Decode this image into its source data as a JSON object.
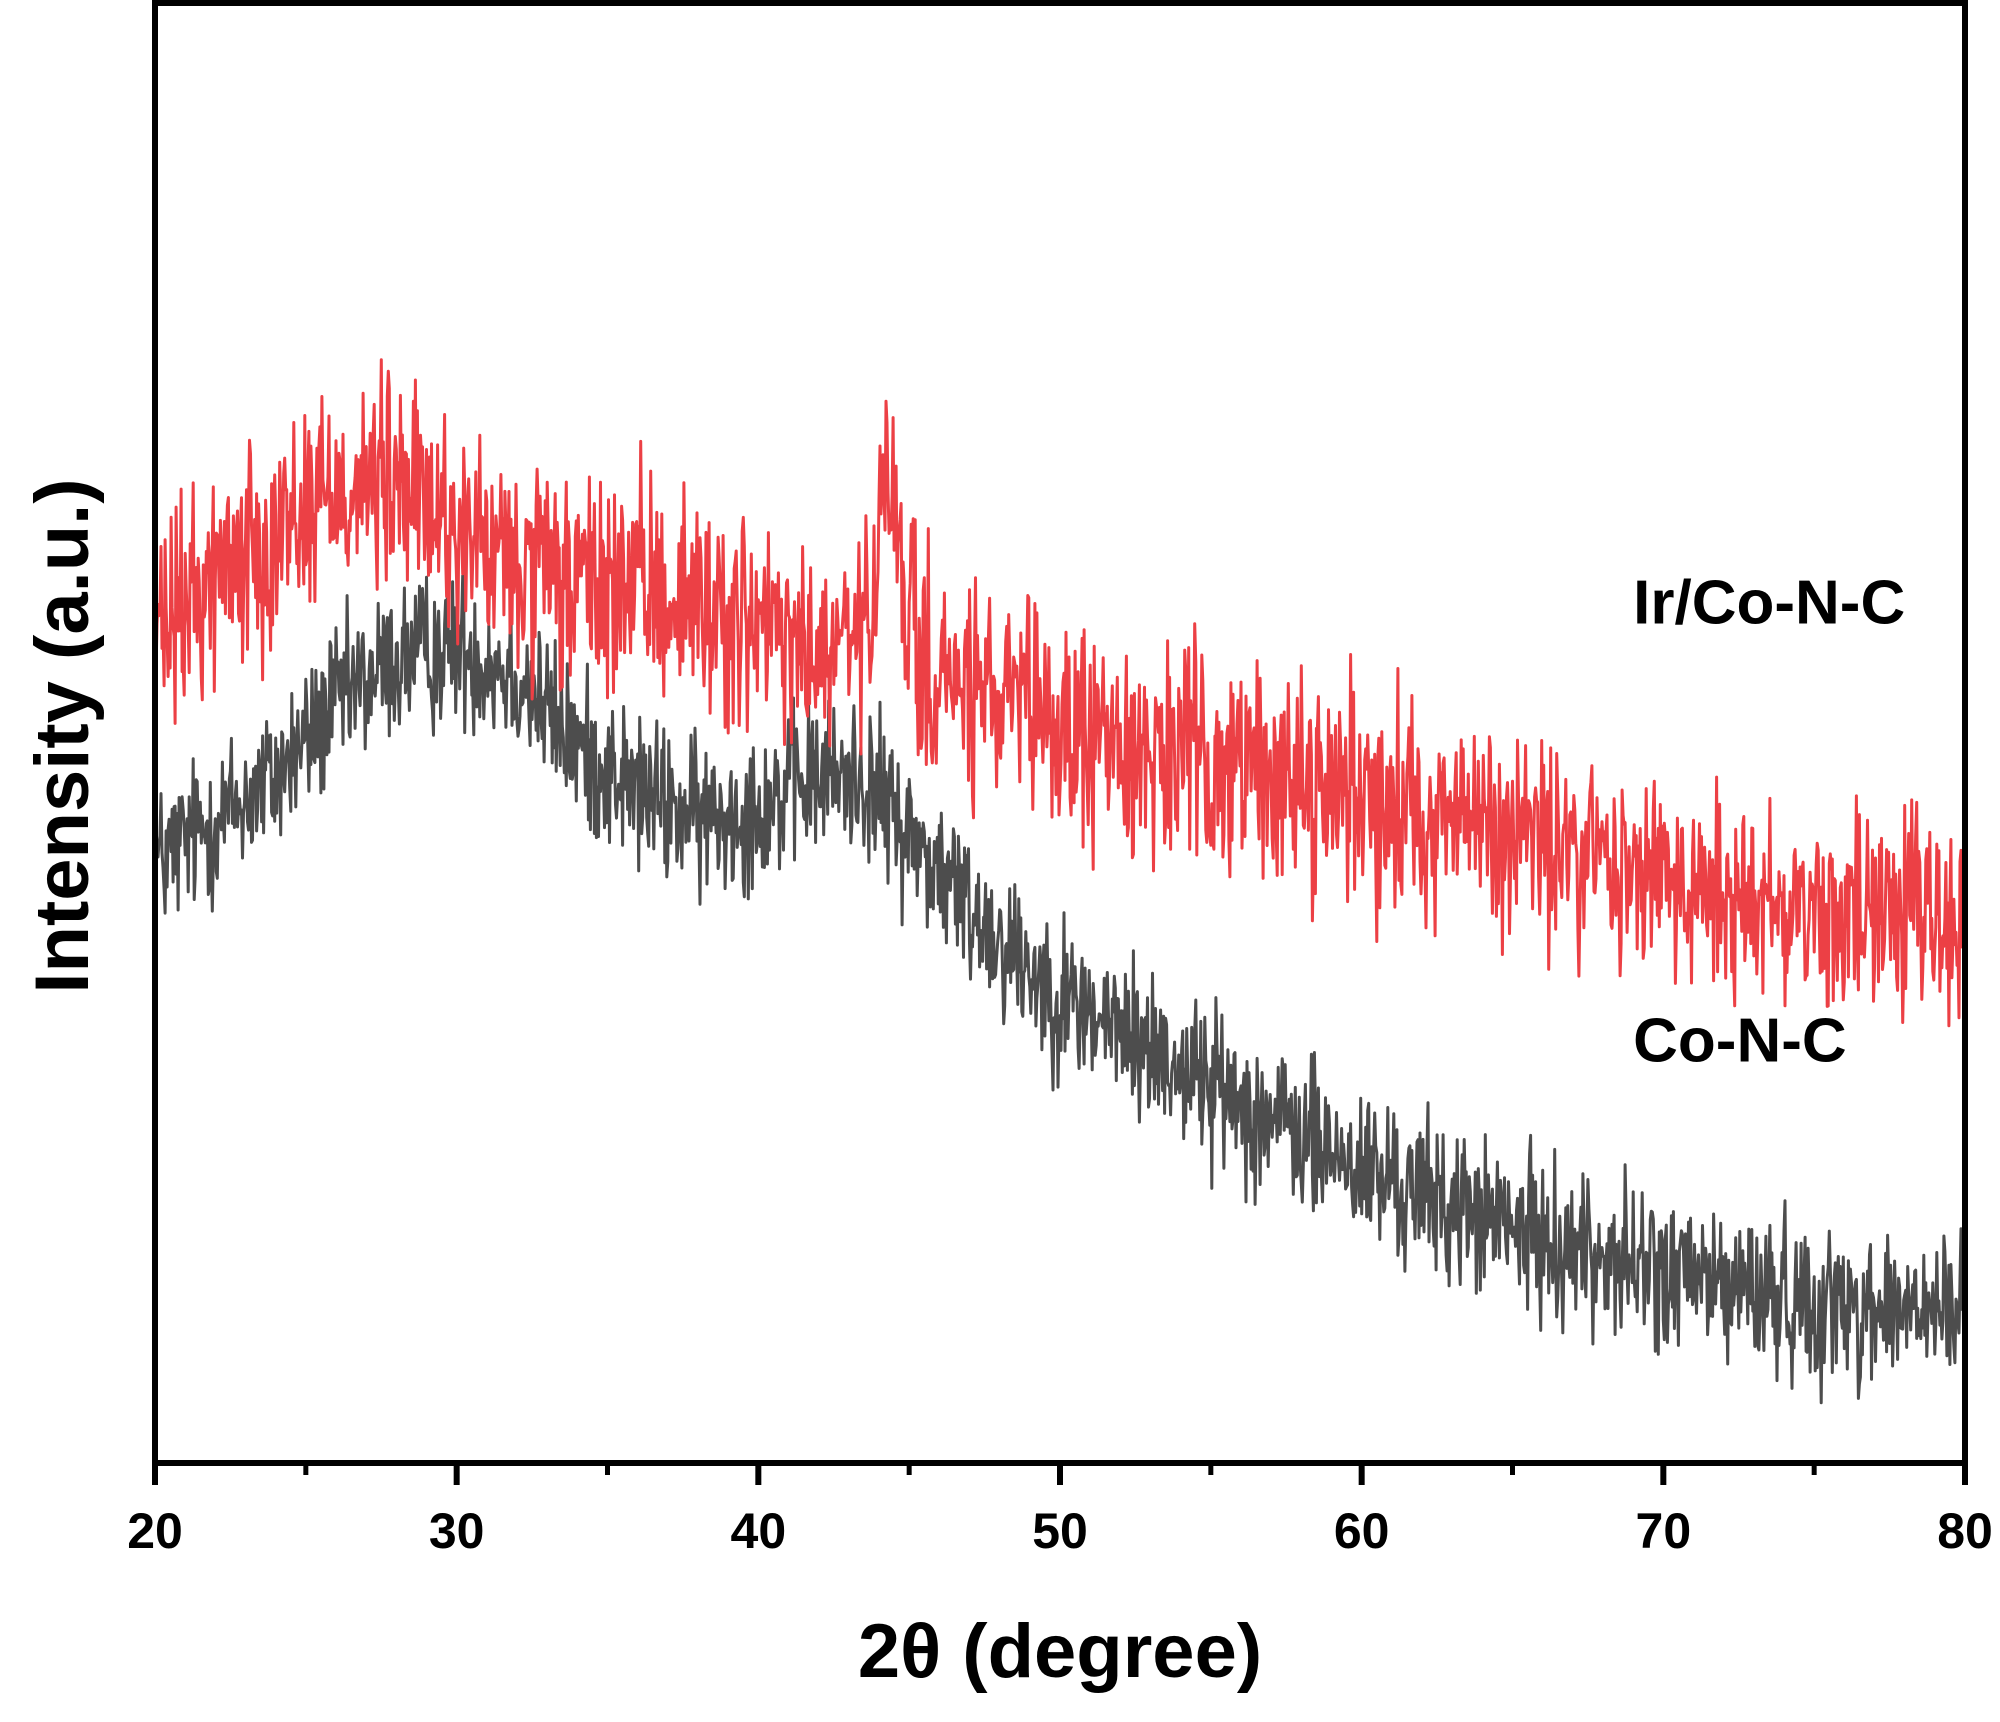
{
  "chart_data": {
    "type": "line",
    "title": "",
    "xlabel": "2θ (degree)",
    "ylabel": "Intensity (a.u.)",
    "xlim": [
      20,
      80
    ],
    "ylim": [
      0,
      100
    ],
    "x_ticks": [
      20,
      30,
      40,
      50,
      60,
      70,
      80
    ],
    "y_ticks_shown": false,
    "grid": false,
    "series": [
      {
        "name": "Ir/Co-N-C",
        "color": "#ec4045",
        "noise_amplitude": 11,
        "envelope": [
          [
            20,
            56
          ],
          [
            22,
            61
          ],
          [
            24,
            64
          ],
          [
            26,
            67
          ],
          [
            28,
            67
          ],
          [
            30,
            64
          ],
          [
            32,
            61
          ],
          [
            34,
            60
          ],
          [
            36,
            60
          ],
          [
            38,
            59
          ],
          [
            40,
            57
          ],
          [
            42,
            55
          ],
          [
            43,
            56
          ],
          [
            43.8,
            58
          ],
          [
            44.3,
            68
          ],
          [
            44.8,
            60
          ],
          [
            45.5,
            54
          ],
          [
            48,
            52
          ],
          [
            50,
            50
          ],
          [
            55,
            48
          ],
          [
            60,
            46
          ],
          [
            65,
            43
          ],
          [
            70,
            40
          ],
          [
            75,
            38
          ],
          [
            80,
            37
          ]
        ]
      },
      {
        "name": "Co-N-C",
        "color": "#4d4d4d",
        "noise_amplitude": 8,
        "envelope": [
          [
            20,
            41
          ],
          [
            22,
            44
          ],
          [
            24,
            47
          ],
          [
            26,
            52
          ],
          [
            28,
            55
          ],
          [
            30,
            56
          ],
          [
            32,
            54
          ],
          [
            34,
            49
          ],
          [
            36,
            46
          ],
          [
            38,
            44
          ],
          [
            40,
            45
          ],
          [
            42,
            47
          ],
          [
            43.5,
            47
          ],
          [
            45,
            43
          ],
          [
            47,
            38
          ],
          [
            50,
            32
          ],
          [
            55,
            26
          ],
          [
            60,
            20
          ],
          [
            65,
            16
          ],
          [
            70,
            13
          ],
          [
            75,
            11
          ],
          [
            80,
            10
          ]
        ]
      }
    ],
    "annotations": [
      {
        "text": "Ir/Co-N-C",
        "series": "Ir/Co-N-C",
        "x": 69,
        "y": 57.5
      },
      {
        "text": "Co-N-C",
        "series": "Co-N-C",
        "x": 69,
        "y": 27.5
      }
    ]
  }
}
